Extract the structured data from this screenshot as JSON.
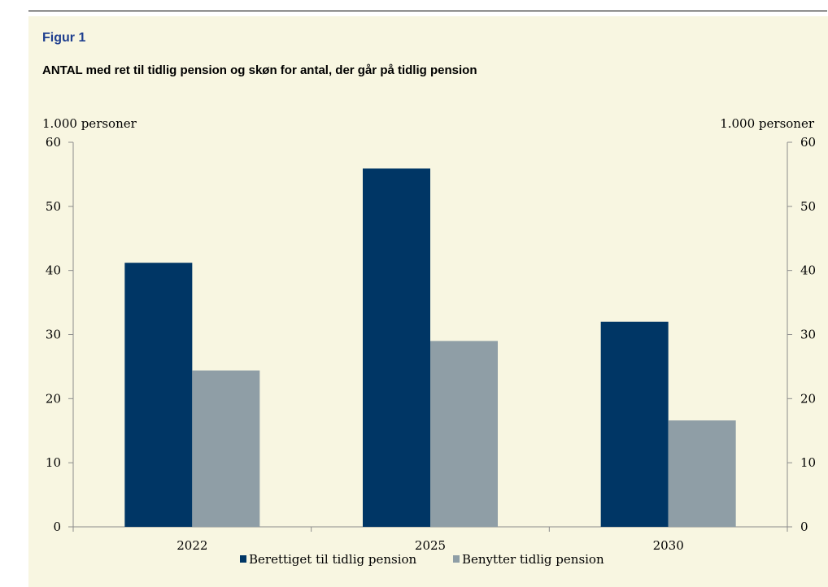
{
  "figure": {
    "label": "Figur 1",
    "title": "ANTAL med ret til tidlig pension og skøn for antal, der går på tidlig pension"
  },
  "chart_data": {
    "type": "bar",
    "categories": [
      "2022",
      "2025",
      "2030"
    ],
    "series": [
      {
        "name": "Berettiget til tidlig pension",
        "values": [
          41.2,
          55.9,
          32.0
        ],
        "color": "#003665"
      },
      {
        "name": "Benytter tidlig pension",
        "values": [
          24.4,
          29.0,
          16.6
        ],
        "color": "#8f9ea6"
      }
    ],
    "ylim": [
      0,
      60
    ],
    "yticks": [
      0,
      10,
      20,
      30,
      40,
      50,
      60
    ],
    "ylabel_left": "1.000 personer",
    "ylabel_right": "1.000 personer",
    "legend_position": "bottom",
    "grid": false
  }
}
